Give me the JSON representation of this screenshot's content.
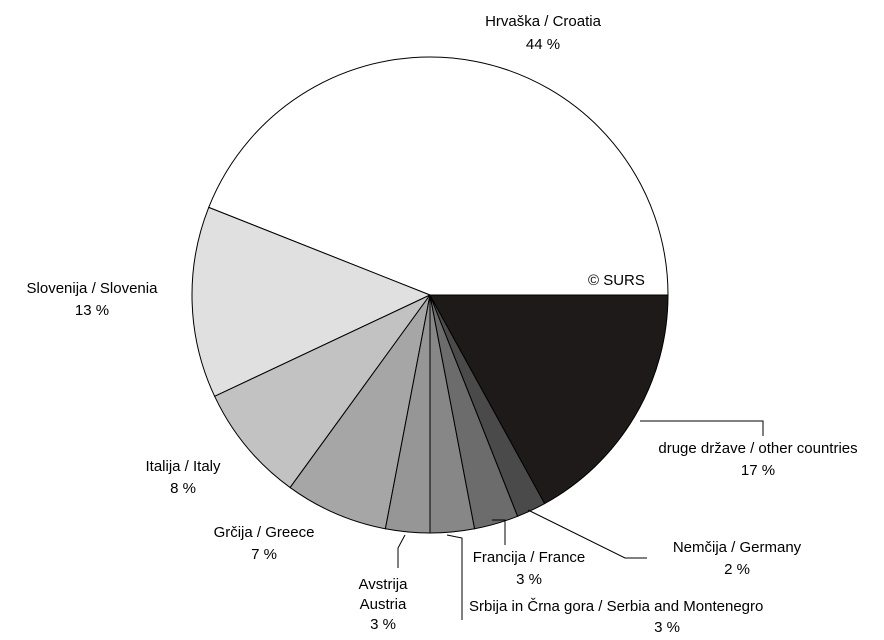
{
  "chart_data": {
    "type": "pie",
    "copyright": "© SURS",
    "slices": [
      {
        "label": "Hrvaška / Croatia",
        "value_label": "44 %",
        "value": 44,
        "color": "#ffffff"
      },
      {
        "label": "Slovenija / Slovenia",
        "value_label": "13 %",
        "value": 13,
        "color": "#e0e0e0"
      },
      {
        "label": "Italija / Italy",
        "value_label": "8 %",
        "value": 8,
        "color": "#c2c2c2"
      },
      {
        "label": "Grčija / Greece",
        "value_label": "7 %",
        "value": 7,
        "color": "#a6a6a6"
      },
      {
        "label": "Avstrija",
        "label2": "Austria",
        "value_label": "3 %",
        "value": 3,
        "color": "#969696"
      },
      {
        "label": "Srbija in Črna gora / Serbia and Montenegro",
        "value_label": "3 %",
        "value": 3,
        "color": "#878787"
      },
      {
        "label": "Francija / France",
        "value_label": "3 %",
        "value": 3,
        "color": "#6c6c6c"
      },
      {
        "label": "Nemčija / Germany",
        "value_label": "2 %",
        "value": 2,
        "color": "#4a4a4a"
      },
      {
        "label": "druge države / other countries",
        "value_label": "17 %",
        "value": 17,
        "color": "#1e1a19"
      }
    ]
  }
}
